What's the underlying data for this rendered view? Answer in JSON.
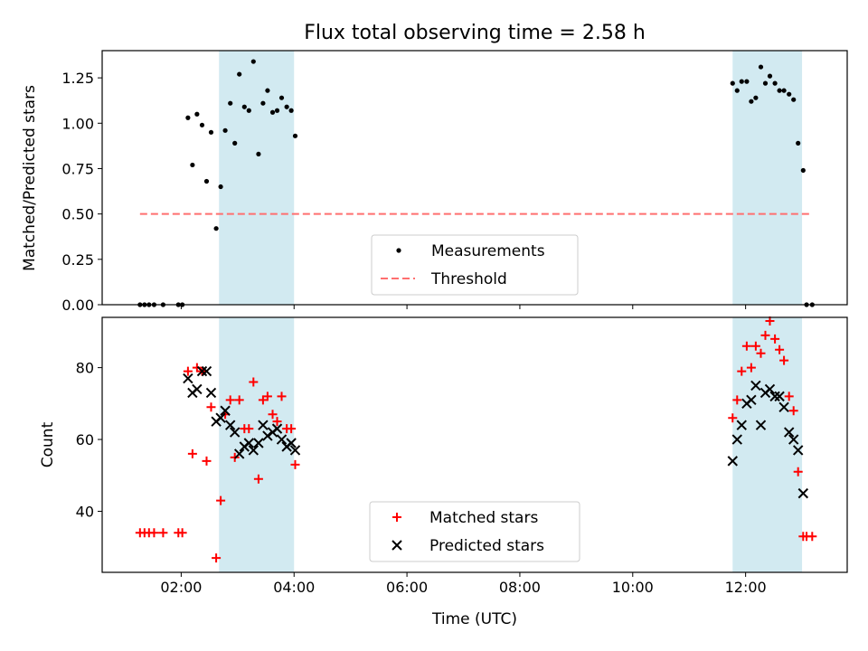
{
  "title": "Flux total observing time = 2.58 h",
  "colors": {
    "span_fill": "#add8e6",
    "measurement": "#000000",
    "threshold": "#ff6f6f",
    "matched": "#ff0000",
    "predicted": "#000000"
  },
  "chart_data": [
    {
      "type": "scatter",
      "ylabel": "Matched/Predicted stars",
      "ylim": [
        0,
        1.4
      ],
      "yticks": [
        0.0,
        0.25,
        0.5,
        0.75,
        1.0,
        1.25
      ],
      "ytick_labels": [
        "0.00",
        "0.25",
        "0.50",
        "0.75",
        "1.00",
        "1.25"
      ],
      "xlim": [
        0.6,
        13.8
      ],
      "xticks": [
        2,
        4,
        6,
        8,
        10,
        12
      ],
      "shaded_spans_hours": [
        [
          2.67,
          4.0
        ],
        [
          11.77,
          13.0
        ]
      ],
      "legend": {
        "placement": "lower-center"
      },
      "series": [
        {
          "name": "Measurements",
          "marker": "dot",
          "x": [
            1.27,
            1.35,
            1.43,
            1.52,
            1.68,
            1.95,
            2.02,
            2.12,
            2.2,
            2.28,
            2.37,
            2.45,
            2.53,
            2.62,
            2.7,
            2.78,
            2.87,
            2.95,
            3.03,
            3.12,
            3.2,
            3.28,
            3.37,
            3.45,
            3.53,
            3.62,
            3.7,
            3.78,
            3.87,
            3.95,
            4.02,
            11.77,
            11.85,
            11.93,
            12.02,
            12.1,
            12.18,
            12.27,
            12.35,
            12.43,
            12.52,
            12.6,
            12.68,
            12.77,
            12.85,
            12.93,
            13.02,
            13.08,
            13.18
          ],
          "y": [
            0.0,
            0.0,
            0.0,
            0.0,
            0.0,
            0.0,
            0.0,
            1.03,
            0.77,
            1.05,
            0.99,
            0.68,
            0.95,
            0.42,
            0.65,
            0.96,
            1.11,
            0.89,
            1.27,
            1.09,
            1.07,
            1.34,
            0.83,
            1.11,
            1.18,
            1.06,
            1.07,
            1.14,
            1.09,
            1.07,
            0.93,
            1.22,
            1.18,
            1.23,
            1.23,
            1.12,
            1.14,
            1.31,
            1.22,
            1.26,
            1.22,
            1.18,
            1.18,
            1.16,
            1.13,
            0.89,
            0.74,
            0.0,
            0.0
          ]
        },
        {
          "name": "Threshold",
          "style": "dashed",
          "x": [
            1.27,
            13.18
          ],
          "y": [
            0.5,
            0.5
          ]
        }
      ]
    },
    {
      "type": "scatter",
      "xlabel": "Time (UTC)",
      "ylabel": "Count",
      "ylim": [
        23,
        94
      ],
      "yticks": [
        40,
        60,
        80
      ],
      "ytick_labels": [
        "40",
        "60",
        "80"
      ],
      "xlim": [
        0.6,
        13.8
      ],
      "xticks": [
        2,
        4,
        6,
        8,
        10,
        12
      ],
      "xtick_labels": [
        "02:00",
        "04:00",
        "06:00",
        "08:00",
        "10:00",
        "12:00"
      ],
      "shaded_spans_hours": [
        [
          2.67,
          4.0
        ],
        [
          11.77,
          13.0
        ]
      ],
      "legend": {
        "placement": "lower-center"
      },
      "series": [
        {
          "name": "Matched stars",
          "marker": "plus",
          "x": [
            1.27,
            1.35,
            1.43,
            1.52,
            1.68,
            1.95,
            2.02,
            2.12,
            2.2,
            2.28,
            2.37,
            2.45,
            2.53,
            2.62,
            2.7,
            2.78,
            2.87,
            2.95,
            3.03,
            3.12,
            3.2,
            3.28,
            3.37,
            3.45,
            3.53,
            3.62,
            3.7,
            3.78,
            3.87,
            3.95,
            4.02,
            11.77,
            11.85,
            11.93,
            12.02,
            12.1,
            12.18,
            12.27,
            12.35,
            12.43,
            12.52,
            12.6,
            12.68,
            12.77,
            12.85,
            12.93,
            13.02,
            13.08,
            13.18
          ],
          "y": [
            34,
            34,
            34,
            34,
            34,
            34,
            34,
            79,
            56,
            80,
            79,
            54,
            69,
            27,
            43,
            67,
            71,
            55,
            71,
            63,
            63,
            76,
            49,
            71,
            72,
            67,
            65,
            72,
            63,
            63,
            53,
            66,
            71,
            79,
            86,
            80,
            86,
            84,
            89,
            93,
            88,
            85,
            82,
            72,
            68,
            51,
            33,
            33,
            33
          ]
        },
        {
          "name": "Predicted stars",
          "marker": "x",
          "x": [
            2.12,
            2.2,
            2.28,
            2.37,
            2.45,
            2.53,
            2.62,
            2.7,
            2.78,
            2.87,
            2.95,
            3.03,
            3.12,
            3.2,
            3.28,
            3.37,
            3.45,
            3.53,
            3.62,
            3.7,
            3.78,
            3.87,
            3.95,
            4.02,
            11.77,
            11.85,
            11.93,
            12.02,
            12.1,
            12.18,
            12.27,
            12.35,
            12.43,
            12.52,
            12.6,
            12.68,
            12.77,
            12.85,
            12.93,
            13.02
          ],
          "y": [
            77,
            73,
            74,
            79,
            79,
            73,
            65,
            66,
            68,
            64,
            62,
            56,
            58,
            59,
            57,
            59,
            64,
            61,
            62,
            63,
            60,
            58,
            59,
            57,
            54,
            60,
            64,
            70,
            71,
            75,
            64,
            73,
            74,
            72,
            72,
            69,
            62,
            60,
            57,
            45
          ]
        }
      ]
    }
  ]
}
